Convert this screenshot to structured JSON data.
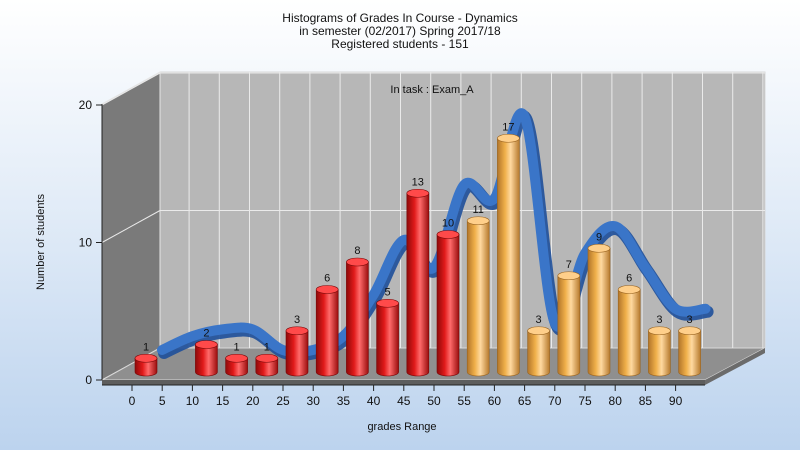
{
  "chart_data": {
    "type": "bar",
    "title_lines": [
      "Histograms of Grades  In Course - Dynamics",
      "in semester  (02/2017) Spring 2017/18",
      "Registered students - 151"
    ],
    "annotation": "In task : Exam_A",
    "xlabel": "grades Range",
    "ylabel": "Number of students",
    "categories": [
      0,
      5,
      10,
      15,
      20,
      25,
      30,
      35,
      40,
      45,
      50,
      55,
      60,
      65,
      70,
      75,
      80,
      85,
      90
    ],
    "x_tick_labels": [
      "0",
      "5",
      "10",
      "15",
      "20",
      "25",
      "30",
      "35",
      "40",
      "45",
      "50",
      "55",
      "60",
      "65",
      "70",
      "75",
      "80",
      "85",
      "90"
    ],
    "values": [
      1,
      0,
      2,
      1,
      1,
      3,
      6,
      8,
      5,
      13,
      10,
      11,
      17,
      3,
      7,
      9,
      6,
      3,
      3
    ],
    "data_labels": [
      "1",
      "",
      "2",
      "1",
      "1",
      "3",
      "6",
      "8",
      "5",
      "13",
      "10",
      "11",
      "17",
      "3",
      "7",
      "9",
      "6",
      "3",
      "3"
    ],
    "y_ticks": [
      0,
      10,
      20
    ],
    "ylim": [
      0,
      20
    ],
    "grid": true,
    "overlay": {
      "type": "smoothed-line",
      "values": [
        0,
        1,
        1.5,
        1.5,
        0,
        0,
        1,
        4,
        8,
        6,
        12,
        11,
        17,
        2,
        7,
        9,
        6,
        3,
        3
      ]
    },
    "colors": {
      "fail_bar": "#e11a1a",
      "pass_bar": "#f0b04a",
      "overlay_line": "#3a75c8",
      "plot_back": "#b7b7b7",
      "plot_wall": "#7a7a7a",
      "plot_floor": "#8f8f8f"
    },
    "pass_threshold_category": 55
  }
}
